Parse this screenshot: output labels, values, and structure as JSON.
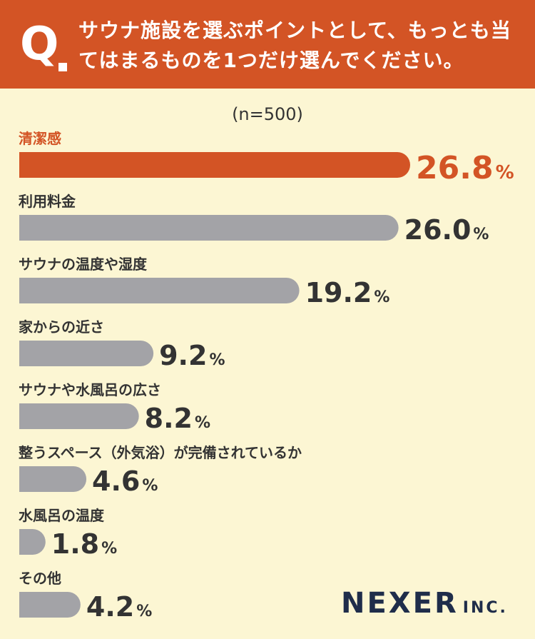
{
  "header": {
    "q_mark": "Q",
    "question": "サウナ施設を選ぶポイントとして、もっとも当てはまるものを1つだけ選んでください。"
  },
  "sample_size": "(n=500)",
  "logo": {
    "main": "NEXER",
    "suffix": "INC."
  },
  "colors": {
    "highlight": "#d35425",
    "bar": "#a3a3a7",
    "background": "#fcf6d3"
  },
  "chart_data": {
    "type": "bar",
    "orientation": "horizontal",
    "unit": "%",
    "categories": [
      "清潔感",
      "利用料金",
      "サウナの温度や湿度",
      "家からの近さ",
      "サウナや水風呂の広さ",
      "整うスペース（外気浴）が完備されているか",
      "水風呂の温度",
      "その他"
    ],
    "values": [
      26.8,
      26.0,
      19.2,
      9.2,
      8.2,
      4.6,
      1.8,
      4.2
    ],
    "labels": [
      "26.8",
      "26.0",
      "19.2",
      "9.2",
      "8.2",
      "4.6",
      "1.8",
      "4.2"
    ],
    "highlight_index": 0
  }
}
